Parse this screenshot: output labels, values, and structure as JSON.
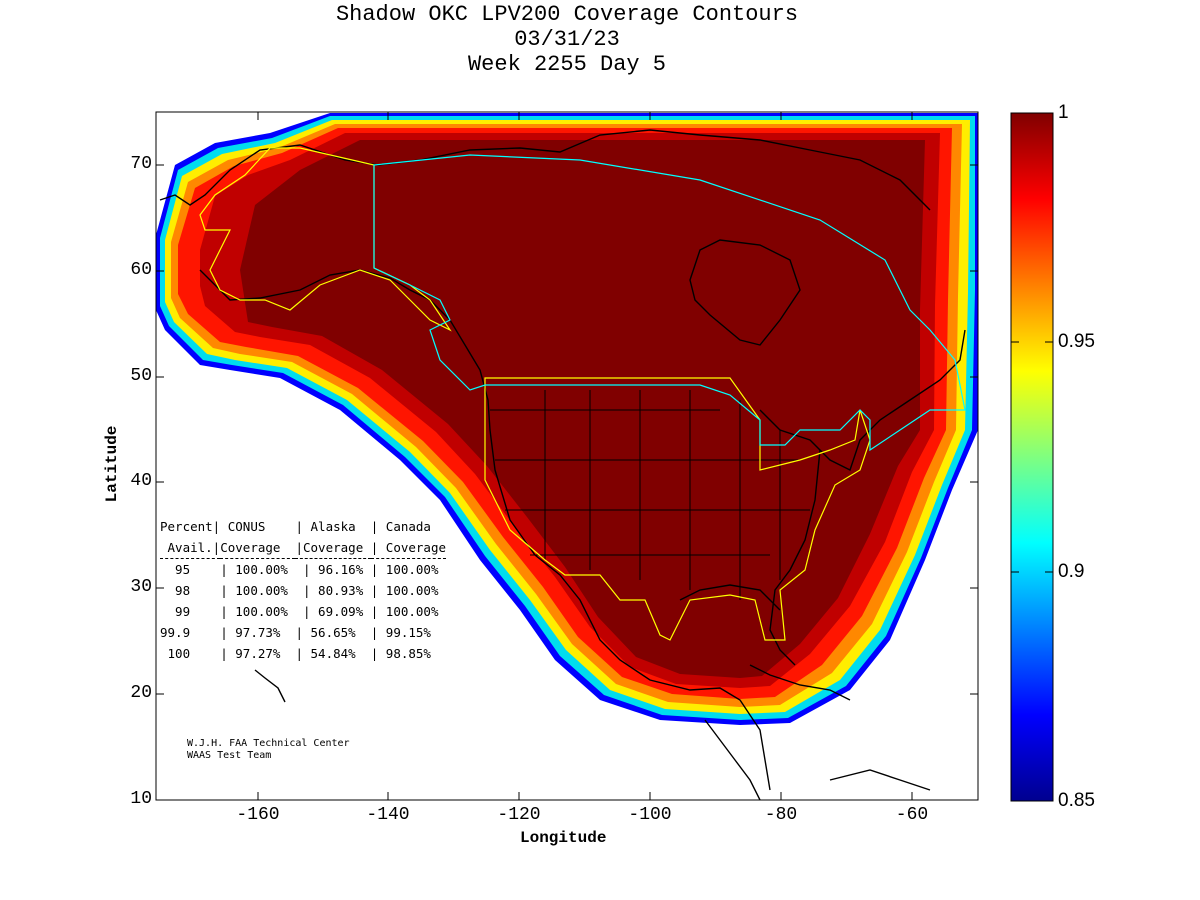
{
  "title": {
    "line1": "Shadow OKC LPV200 Coverage Contours",
    "line2": "03/31/23",
    "line3": "Week 2255 Day 5"
  },
  "axes": {
    "xlabel": "Longitude",
    "ylabel": "Latitude",
    "xlim": [
      -175,
      -50
    ],
    "ylim": [
      10,
      75
    ],
    "xticks": [
      "-160",
      "-140",
      "-120",
      "-100",
      "-80",
      "-60"
    ],
    "yticks": [
      "70",
      "60",
      "50",
      "40",
      "30",
      "20",
      "10"
    ]
  },
  "colorbar": {
    "labels": [
      "1",
      "0.95",
      "0.9",
      "0.85"
    ],
    "min": 0.85,
    "max": 1.0
  },
  "stats_table": {
    "header1": [
      "Percent|",
      " CONUS   ",
      "| Alaska  ",
      "| Canada"
    ],
    "header2": [
      " Avail.|",
      "Coverage ",
      "|Coverage ",
      "| Coverage"
    ],
    "rows": [
      [
        "  95   ",
        "| 100.00% ",
        " | 96.16% ",
        "| 100.00%"
      ],
      [
        "  98   ",
        "| 100.00% ",
        " | 80.93% ",
        "| 100.00%"
      ],
      [
        "  99   ",
        "| 100.00% ",
        " | 69.09% ",
        "| 100.00%"
      ],
      [
        "99.9   ",
        "| 97.73%  ",
        "| 56.65% ",
        "| 99.15%"
      ],
      [
        " 100   ",
        "| 97.27%  ",
        "| 54.84% ",
        "| 98.85%"
      ]
    ]
  },
  "credit": {
    "line1": "W.J.H. FAA Technical Center",
    "line2": "WAAS Test Team"
  },
  "colors": {
    "max": "#800000",
    "red": "#ff0000",
    "yellow": "#ffff00",
    "cyan": "#00ffff",
    "blue": "#0000ff"
  }
}
